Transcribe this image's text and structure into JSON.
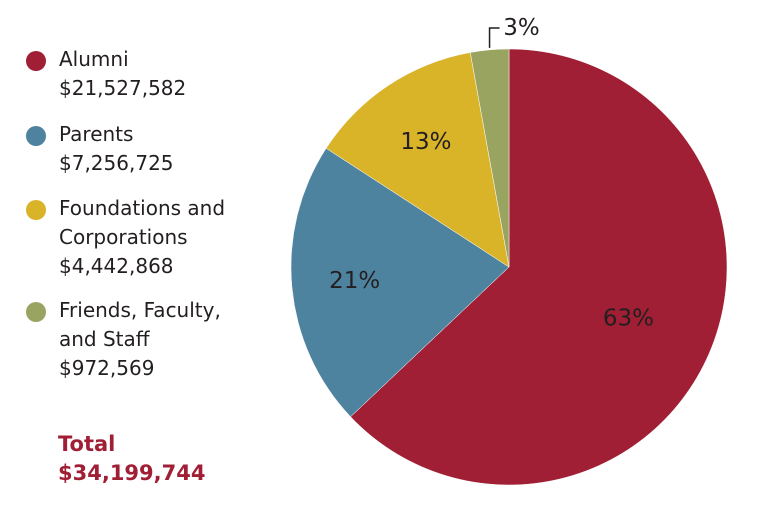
{
  "chart_data": {
    "type": "pie",
    "slices": [
      {
        "name": "Alumni",
        "amount": "$21,527,582",
        "value": 21527582,
        "percent_label": "63%",
        "color": "#a01f35"
      },
      {
        "name": "Parents",
        "amount": "$7,256,725",
        "value": 7256725,
        "percent_label": "21%",
        "color": "#4e839f"
      },
      {
        "name": "Foundations and\nCorporations",
        "amount": "$4,442,868",
        "value": 4442868,
        "percent_label": "13%",
        "color": "#d9b328"
      },
      {
        "name": "Friends, Faculty,\nand Staff",
        "amount": "$972,569",
        "value": 972569,
        "percent_label": "3%",
        "color": "#9aa461"
      }
    ],
    "total_label": "Total",
    "total_value": "$34,199,744",
    "legend_position": "left"
  }
}
